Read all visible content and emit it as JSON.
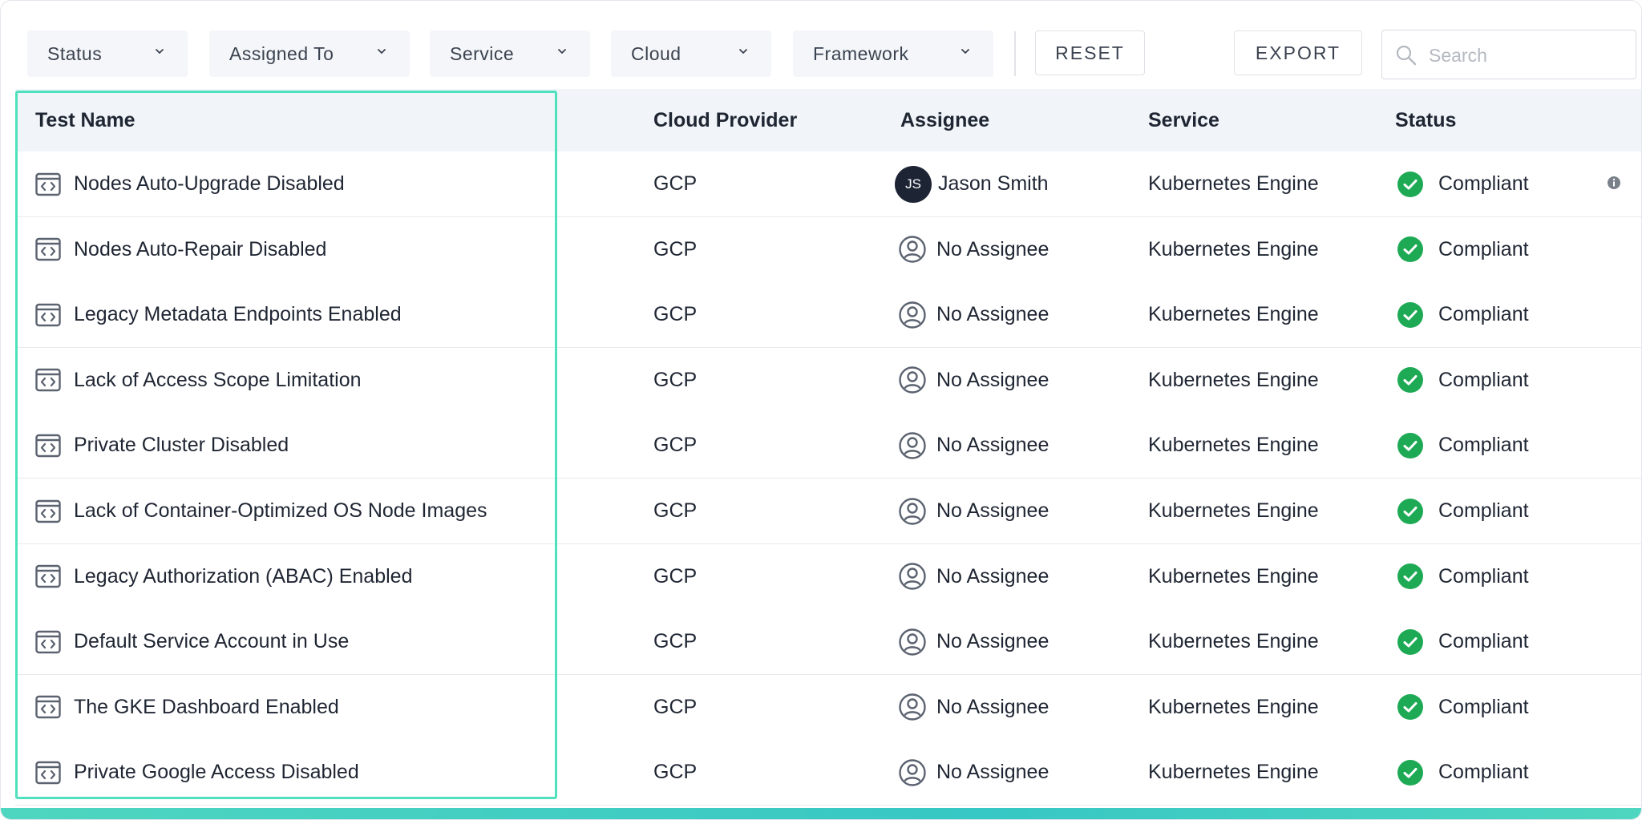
{
  "toolbar": {
    "filters": [
      {
        "label": "Status"
      },
      {
        "label": "Assigned To"
      },
      {
        "label": "Service"
      },
      {
        "label": "Cloud"
      },
      {
        "label": "Framework"
      }
    ],
    "reset_label": "RESET",
    "export_label": "EXPORT",
    "search_placeholder": "Search",
    "search_value": ""
  },
  "table": {
    "columns": [
      "Test Name",
      "Cloud Provider",
      "Assignee",
      "Service",
      "Status"
    ],
    "rows": [
      {
        "test": "Nodes Auto-Upgrade Disabled",
        "cloud": "GCP",
        "assignee": "Jason Smith",
        "initials": "JS",
        "service": "Kubernetes Engine",
        "status": "Compliant"
      },
      {
        "test": "Nodes Auto-Repair Disabled",
        "cloud": "GCP",
        "assignee": "No Assignee",
        "initials": "",
        "service": "Kubernetes Engine",
        "status": "Compliant"
      },
      {
        "test": "Legacy Metadata Endpoints Enabled",
        "cloud": "GCP",
        "assignee": "No Assignee",
        "initials": "",
        "service": "Kubernetes Engine",
        "status": "Compliant"
      },
      {
        "test": "Lack of Access Scope Limitation",
        "cloud": "GCP",
        "assignee": "No Assignee",
        "initials": "",
        "service": "Kubernetes Engine",
        "status": "Compliant"
      },
      {
        "test": "Private Cluster Disabled",
        "cloud": "GCP",
        "assignee": "No Assignee",
        "initials": "",
        "service": "Kubernetes Engine",
        "status": "Compliant"
      },
      {
        "test": "Lack of Container-Optimized OS Node Images",
        "cloud": "GCP",
        "assignee": "No Assignee",
        "initials": "",
        "service": "Kubernetes Engine",
        "status": "Compliant"
      },
      {
        "test": "Legacy Authorization (ABAC) Enabled",
        "cloud": "GCP",
        "assignee": "No Assignee",
        "initials": "",
        "service": "Kubernetes Engine",
        "status": "Compliant"
      },
      {
        "test": "Default Service Account in Use",
        "cloud": "GCP",
        "assignee": "No Assignee",
        "initials": "",
        "service": "Kubernetes Engine",
        "status": "Compliant"
      },
      {
        "test": "The GKE Dashboard Enabled",
        "cloud": "GCP",
        "assignee": "No Assignee",
        "initials": "",
        "service": "Kubernetes Engine",
        "status": "Compliant"
      },
      {
        "test": "Private Google Access Disabled",
        "cloud": "GCP",
        "assignee": "No Assignee",
        "initials": "",
        "service": "Kubernetes Engine",
        "status": "Compliant"
      }
    ]
  },
  "icons": {
    "filter_chevron": "chevron-down-icon",
    "search": "search-icon",
    "test": "code-window-icon",
    "no_assignee": "user-circle-icon",
    "status": "check-circle-icon",
    "info": "info-icon"
  },
  "colors": {
    "compliant": "#1eaa55",
    "highlight": "#4fe0bd",
    "avatar_bg": "#1d2434",
    "header_bg": "#f1f4f8"
  }
}
